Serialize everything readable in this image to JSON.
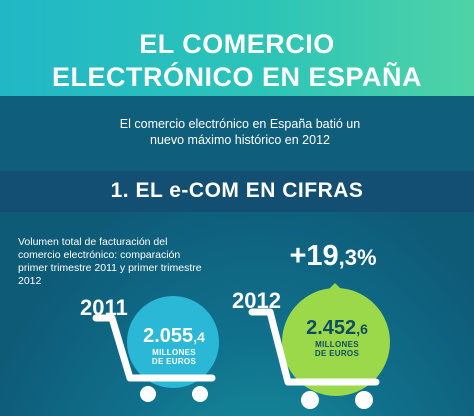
{
  "header": {
    "title_line1": "EL COMERCIO",
    "title_line2": "ELECTRÓNICO EN ESPAÑA"
  },
  "intro": {
    "line1": "El comercio electrónico en España batió un",
    "line2": "nuevo máximo histórico en 2012"
  },
  "section": {
    "title": "1. EL  e-COM EN CIFRAS"
  },
  "description": "Volumen total de facturación del comercio electrónico: comparación primer trimestre 2011 y primer trimestre 2012",
  "growth": {
    "prefix": "+",
    "value": "19",
    "decimal": ",3%"
  },
  "year_2011": {
    "label": "2011",
    "value": "2.055",
    "decimal": ",4",
    "unit_line1": "MILLONES",
    "unit_line2": "DE EUROS"
  },
  "year_2012": {
    "label": "2012",
    "value": "2.452",
    "decimal": ",6",
    "unit_line1": "MILLONES",
    "unit_line2": "DE EUROS"
  },
  "colors": {
    "header_gradient_start": "#21b7c7",
    "header_gradient_end": "#4fd3a6",
    "background": "#0e5b78",
    "circle_2011": "#2bb8d6",
    "circle_2012": "#9bd84a"
  }
}
